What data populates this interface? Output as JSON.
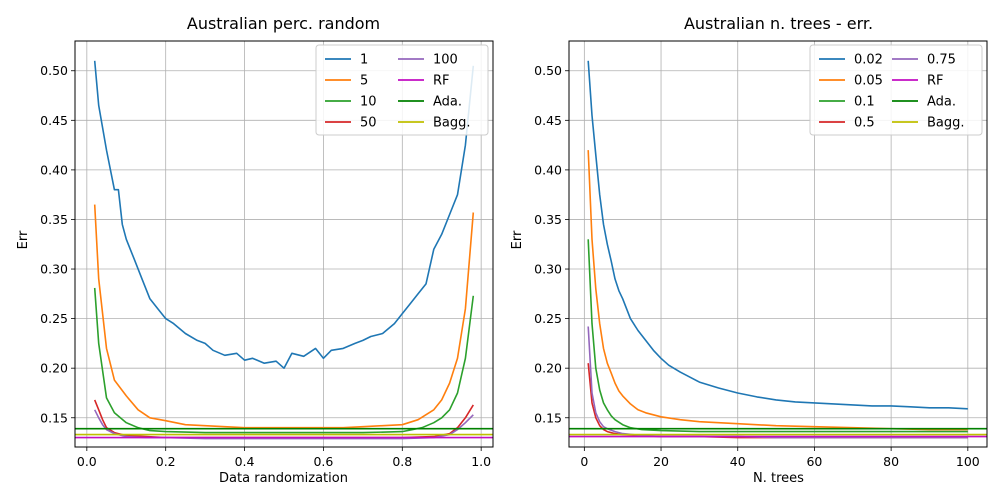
{
  "chart_data": [
    {
      "type": "line",
      "title": "Australian perc. random",
      "xlabel": "Data randomization",
      "ylabel": "Err",
      "xlim": [
        -0.03,
        1.03
      ],
      "ylim": [
        0.1205,
        0.53
      ],
      "xticks": [
        0.0,
        0.2,
        0.4,
        0.6,
        0.8,
        1.0
      ],
      "xtick_labels": [
        "0.0",
        "0.2",
        "0.4",
        "0.6",
        "0.8",
        "1.0"
      ],
      "yticks": [
        0.15,
        0.2,
        0.25,
        0.3,
        0.35,
        0.4,
        0.45,
        0.5
      ],
      "ytick_labels": [
        "0.15",
        "0.20",
        "0.25",
        "0.30",
        "0.35",
        "0.40",
        "0.45",
        "0.50"
      ],
      "grid": true,
      "legend": {
        "position": "top-right",
        "columns": 2
      },
      "series": [
        {
          "name": "1",
          "color": "#1f77b4",
          "x": [
            0.02,
            0.03,
            0.05,
            0.07,
            0.08,
            0.09,
            0.1,
            0.12,
            0.14,
            0.16,
            0.18,
            0.2,
            0.22,
            0.25,
            0.28,
            0.3,
            0.32,
            0.35,
            0.38,
            0.4,
            0.42,
            0.45,
            0.48,
            0.5,
            0.52,
            0.55,
            0.58,
            0.6,
            0.62,
            0.65,
            0.68,
            0.7,
            0.72,
            0.75,
            0.78,
            0.8,
            0.82,
            0.84,
            0.86,
            0.88,
            0.9,
            0.92,
            0.94,
            0.96,
            0.98
          ],
          "y": [
            0.51,
            0.465,
            0.42,
            0.38,
            0.38,
            0.345,
            0.33,
            0.31,
            0.29,
            0.27,
            0.26,
            0.25,
            0.245,
            0.235,
            0.228,
            0.225,
            0.218,
            0.213,
            0.215,
            0.208,
            0.21,
            0.205,
            0.207,
            0.2,
            0.215,
            0.212,
            0.22,
            0.21,
            0.218,
            0.22,
            0.225,
            0.228,
            0.232,
            0.235,
            0.245,
            0.255,
            0.265,
            0.275,
            0.285,
            0.32,
            0.335,
            0.355,
            0.375,
            0.425,
            0.505
          ]
        },
        {
          "name": "5",
          "color": "#ff7f0e",
          "x": [
            0.02,
            0.03,
            0.05,
            0.07,
            0.1,
            0.13,
            0.16,
            0.2,
            0.25,
            0.3,
            0.35,
            0.4,
            0.45,
            0.5,
            0.55,
            0.6,
            0.65,
            0.7,
            0.75,
            0.8,
            0.84,
            0.88,
            0.9,
            0.92,
            0.94,
            0.96,
            0.98
          ],
          "y": [
            0.365,
            0.29,
            0.22,
            0.188,
            0.172,
            0.158,
            0.15,
            0.147,
            0.143,
            0.142,
            0.141,
            0.14,
            0.14,
            0.14,
            0.14,
            0.14,
            0.14,
            0.141,
            0.142,
            0.143,
            0.148,
            0.158,
            0.168,
            0.185,
            0.21,
            0.26,
            0.357
          ]
        },
        {
          "name": "10",
          "color": "#2ca02c",
          "x": [
            0.02,
            0.03,
            0.05,
            0.07,
            0.1,
            0.13,
            0.16,
            0.2,
            0.3,
            0.4,
            0.5,
            0.6,
            0.7,
            0.8,
            0.85,
            0.88,
            0.9,
            0.92,
            0.94,
            0.96,
            0.98
          ],
          "y": [
            0.281,
            0.225,
            0.17,
            0.155,
            0.145,
            0.14,
            0.137,
            0.136,
            0.135,
            0.135,
            0.135,
            0.135,
            0.135,
            0.136,
            0.14,
            0.145,
            0.15,
            0.158,
            0.175,
            0.21,
            0.273
          ]
        },
        {
          "name": "50",
          "color": "#d62728",
          "x": [
            0.02,
            0.03,
            0.04,
            0.05,
            0.07,
            0.1,
            0.15,
            0.2,
            0.3,
            0.4,
            0.5,
            0.6,
            0.7,
            0.8,
            0.88,
            0.92,
            0.94,
            0.96,
            0.98
          ],
          "y": [
            0.168,
            0.158,
            0.148,
            0.14,
            0.135,
            0.132,
            0.131,
            0.13,
            0.13,
            0.13,
            0.13,
            0.13,
            0.13,
            0.13,
            0.131,
            0.134,
            0.14,
            0.15,
            0.163
          ]
        },
        {
          "name": "100",
          "color": "#9467bd",
          "x": [
            0.02,
            0.03,
            0.04,
            0.05,
            0.07,
            0.1,
            0.15,
            0.2,
            0.3,
            0.4,
            0.5,
            0.6,
            0.7,
            0.8,
            0.88,
            0.92,
            0.94,
            0.96,
            0.98
          ],
          "y": [
            0.158,
            0.15,
            0.143,
            0.138,
            0.134,
            0.131,
            0.13,
            0.13,
            0.129,
            0.129,
            0.129,
            0.129,
            0.129,
            0.129,
            0.13,
            0.133,
            0.138,
            0.145,
            0.153
          ]
        },
        {
          "name": "RF",
          "color": "#c20ec2",
          "x": [
            -0.03,
            1.03
          ],
          "y": [
            0.13,
            0.13
          ]
        },
        {
          "name": "Ada.",
          "color": "#008000",
          "x": [
            -0.03,
            1.03
          ],
          "y": [
            0.139,
            0.139
          ]
        },
        {
          "name": "Bagg.",
          "color": "#bfbf00",
          "x": [
            -0.03,
            1.03
          ],
          "y": [
            0.133,
            0.133
          ]
        }
      ]
    },
    {
      "type": "line",
      "title": "Australian n. trees - err.",
      "xlabel": "N. trees",
      "ylabel": "Err",
      "xlim": [
        -4,
        105
      ],
      "ylim": [
        0.1205,
        0.53
      ],
      "xticks": [
        0,
        20,
        40,
        60,
        80,
        100
      ],
      "xtick_labels": [
        "0",
        "20",
        "40",
        "60",
        "80",
        "100"
      ],
      "yticks": [
        0.15,
        0.2,
        0.25,
        0.3,
        0.35,
        0.4,
        0.45,
        0.5
      ],
      "ytick_labels": [
        "0.15",
        "0.20",
        "0.25",
        "0.30",
        "0.35",
        "0.40",
        "0.45",
        "0.50"
      ],
      "grid": true,
      "legend": {
        "position": "top-right",
        "columns": 2
      },
      "series": [
        {
          "name": "0.02",
          "color": "#1f77b4",
          "x": [
            1,
            2,
            3,
            4,
            5,
            6,
            7,
            8,
            9,
            10,
            12,
            14,
            16,
            18,
            20,
            22,
            25,
            28,
            30,
            35,
            40,
            45,
            50,
            55,
            60,
            65,
            70,
            75,
            80,
            85,
            90,
            95,
            100
          ],
          "y": [
            0.51,
            0.455,
            0.415,
            0.375,
            0.345,
            0.325,
            0.308,
            0.29,
            0.278,
            0.27,
            0.25,
            0.238,
            0.228,
            0.218,
            0.21,
            0.203,
            0.196,
            0.19,
            0.186,
            0.18,
            0.175,
            0.171,
            0.168,
            0.166,
            0.165,
            0.164,
            0.163,
            0.162,
            0.162,
            0.161,
            0.16,
            0.16,
            0.159
          ]
        },
        {
          "name": "0.05",
          "color": "#ff7f0e",
          "x": [
            1,
            2,
            3,
            4,
            5,
            6,
            7,
            8,
            9,
            10,
            12,
            14,
            16,
            18,
            20,
            25,
            30,
            40,
            50,
            60,
            70,
            80,
            90,
            100
          ],
          "y": [
            0.42,
            0.33,
            0.28,
            0.245,
            0.22,
            0.205,
            0.195,
            0.185,
            0.177,
            0.172,
            0.164,
            0.158,
            0.155,
            0.153,
            0.151,
            0.148,
            0.146,
            0.144,
            0.142,
            0.141,
            0.14,
            0.139,
            0.138,
            0.138
          ]
        },
        {
          "name": "0.1",
          "color": "#2ca02c",
          "x": [
            1,
            2,
            3,
            4,
            5,
            6,
            7,
            8,
            10,
            12,
            15,
            20,
            30,
            40,
            50,
            60,
            70,
            80,
            90,
            100
          ],
          "y": [
            0.33,
            0.245,
            0.2,
            0.178,
            0.165,
            0.158,
            0.152,
            0.148,
            0.143,
            0.14,
            0.138,
            0.137,
            0.136,
            0.136,
            0.136,
            0.136,
            0.136,
            0.136,
            0.136,
            0.136
          ]
        },
        {
          "name": "0.5",
          "color": "#d62728",
          "x": [
            1,
            2,
            3,
            4,
            5,
            6,
            8,
            10,
            15,
            20,
            30,
            40,
            50,
            60,
            70,
            80,
            90,
            100
          ],
          "y": [
            0.205,
            0.165,
            0.15,
            0.142,
            0.138,
            0.136,
            0.134,
            0.133,
            0.132,
            0.131,
            0.131,
            0.13,
            0.13,
            0.13,
            0.13,
            0.13,
            0.13,
            0.13
          ]
        },
        {
          "name": "0.75",
          "color": "#9467bd",
          "x": [
            1,
            2,
            3,
            4,
            5,
            6,
            8,
            10,
            15,
            20,
            30,
            40,
            50,
            60,
            70,
            80,
            90,
            100
          ],
          "y": [
            0.242,
            0.175,
            0.155,
            0.146,
            0.141,
            0.139,
            0.136,
            0.134,
            0.132,
            0.131,
            0.131,
            0.131,
            0.13,
            0.13,
            0.13,
            0.13,
            0.13,
            0.13
          ]
        },
        {
          "name": "RF",
          "color": "#c20ec2",
          "x": [
            -4,
            105
          ],
          "y": [
            0.131,
            0.131
          ]
        },
        {
          "name": "Ada.",
          "color": "#008000",
          "x": [
            -4,
            105
          ],
          "y": [
            0.139,
            0.139
          ]
        },
        {
          "name": "Bagg.",
          "color": "#bfbf00",
          "x": [
            -4,
            105
          ],
          "y": [
            0.133,
            0.133
          ]
        }
      ]
    }
  ]
}
